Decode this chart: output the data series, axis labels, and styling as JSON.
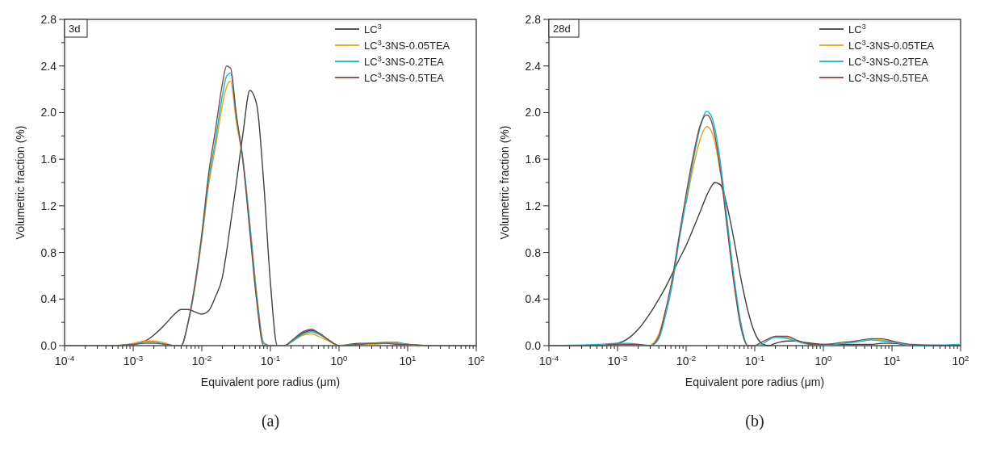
{
  "chart_data": [
    {
      "type": "line",
      "log": "x",
      "xlabel": "Equivalent pore radius (μm)",
      "ylabel": "Volumetric fraction (%)",
      "legend": "top right",
      "annotations": [
        "3d",
        "(a)"
      ],
      "xlim": [
        0.0001,
        100
      ],
      "ylim": [
        0,
        2.8
      ],
      "xticks": [
        {
          "value": 0.0001,
          "label": "10$^{-4}$"
        },
        {
          "value": 0.0002,
          "label": null
        },
        {
          "value": 0.0003,
          "label": null
        },
        {
          "value": 0.0004,
          "label": null
        },
        {
          "value": 0.0005,
          "label": null
        },
        {
          "value": 0.0006,
          "label": null
        },
        {
          "value": 0.0007,
          "label": null
        },
        {
          "value": 0.0008,
          "label": null
        },
        {
          "value": 0.0009,
          "label": null
        },
        {
          "value": 0.001,
          "label": "10$^{-3}$"
        },
        {
          "value": 0.002,
          "label": null
        },
        {
          "value": 0.003,
          "label": null
        },
        {
          "value": 0.004,
          "label": null
        },
        {
          "value": 0.005,
          "label": null
        },
        {
          "value": 0.006,
          "label": null
        },
        {
          "value": 0.007,
          "label": null
        },
        {
          "value": 0.008,
          "label": null
        },
        {
          "value": 0.009,
          "label": null
        },
        {
          "value": 0.01,
          "label": "10$^{-2}$"
        },
        {
          "value": 0.02,
          "label": null
        },
        {
          "value": 0.03,
          "label": null
        },
        {
          "value": 0.04,
          "label": null
        },
        {
          "value": 0.05,
          "label": null
        },
        {
          "value": 0.06,
          "label": null
        },
        {
          "value": 0.07,
          "label": null
        },
        {
          "value": 0.08,
          "label": null
        },
        {
          "value": 0.09,
          "label": null
        },
        {
          "value": 0.1,
          "label": "10$^{-1}$"
        },
        {
          "value": 0.2,
          "label": null
        },
        {
          "value": 0.3,
          "label": null
        },
        {
          "value": 0.4,
          "label": null
        },
        {
          "value": 0.5,
          "label": null
        },
        {
          "value": 0.6,
          "label": null
        },
        {
          "value": 0.7,
          "label": null
        },
        {
          "value": 0.8,
          "label": null
        },
        {
          "value": 0.9,
          "label": null
        },
        {
          "value": 1,
          "label": "10$^{0}$"
        },
        {
          "value": 2,
          "label": null
        },
        {
          "value": 3,
          "label": null
        },
        {
          "value": 4,
          "label": null
        },
        {
          "value": 5,
          "label": null
        },
        {
          "value": 6,
          "label": null
        },
        {
          "value": 7,
          "label": null
        },
        {
          "value": 8,
          "label": null
        },
        {
          "value": 9,
          "label": null
        },
        {
          "value": 10,
          "label": "10$^{1}$"
        },
        {
          "value": 20,
          "label": null
        },
        {
          "value": 30,
          "label": null
        },
        {
          "value": 40,
          "label": null
        },
        {
          "value": 50,
          "label": null
        },
        {
          "value": 60,
          "label": null
        },
        {
          "value": 70,
          "label": null
        },
        {
          "value": 80,
          "label": null
        },
        {
          "value": 90,
          "label": null
        },
        {
          "value": 100,
          "label": "10$^{2}$"
        }
      ],
      "yticks": [
        {
          "value": 0,
          "label": "0.0"
        },
        {
          "value": 0.2,
          "label": null
        },
        {
          "value": 0.4,
          "label": "0.4"
        },
        {
          "value": 0.6,
          "label": null
        },
        {
          "value": 0.8,
          "label": "0.8"
        },
        {
          "value": 1,
          "label": null
        },
        {
          "value": 1.2,
          "label": "1.2"
        },
        {
          "value": 1.4,
          "label": null
        },
        {
          "value": 1.6,
          "label": "1.6"
        },
        {
          "value": 1.8,
          "label": null
        },
        {
          "value": 2,
          "label": "2.0"
        },
        {
          "value": 2.2,
          "label": null
        },
        {
          "value": 2.4,
          "label": "2.4"
        },
        {
          "value": 2.6,
          "label": null
        },
        {
          "value": 2.8,
          "label": "2.8"
        }
      ],
      "x": [
        0.0001,
        0.0005,
        0.001,
        0.0015,
        0.002,
        0.003,
        0.004,
        0.005,
        0.0063,
        0.0079,
        0.01,
        0.0126,
        0.0158,
        0.02,
        0.0229,
        0.0263,
        0.0316,
        0.0398,
        0.0501,
        0.0631,
        0.0794,
        0.1,
        0.126,
        0.16,
        0.2,
        0.3,
        0.4,
        0.5,
        0.7,
        1,
        2,
        3,
        5,
        7,
        10,
        20,
        100
      ],
      "series": [
        {
          "name": "LC$^{3}$",
          "color": "#404040",
          "values": [
            0,
            0,
            0.01,
            0.04,
            0.09,
            0.19,
            0.27,
            0.31,
            0.31,
            0.29,
            0.27,
            0.3,
            0.42,
            0.59,
            0.8,
            1.05,
            1.38,
            1.82,
            2.19,
            2.07,
            1.42,
            0.54,
            0,
            0,
            0.03,
            0.11,
            0.13,
            0.11,
            0.05,
            0,
            0.02,
            0.02,
            0.02,
            0.02,
            0.01,
            0,
            0
          ]
        },
        {
          "name": "LC$^{3}$-3NS-0.05TEA",
          "color": "#e6a41c",
          "values": [
            0,
            0,
            0.02,
            0.04,
            0.04,
            0.02,
            0,
            0,
            0.19,
            0.49,
            0.91,
            1.38,
            1.7,
            2.07,
            2.22,
            2.27,
            1.93,
            1.59,
            1.05,
            0.45,
            0.03,
            0,
            0,
            0,
            0.03,
            0.09,
            0.1,
            0.08,
            0.04,
            0,
            0.01,
            0.01,
            0.02,
            0.02,
            0.01,
            0,
            0
          ]
        },
        {
          "name": "LC$^{3}$-3NS-0.2TEA",
          "color": "#1ab3cc",
          "values": [
            0,
            0,
            0.01,
            0.03,
            0.03,
            0.01,
            0,
            0,
            0.19,
            0.5,
            0.93,
            1.42,
            1.76,
            2.15,
            2.31,
            2.34,
            1.98,
            1.6,
            1.04,
            0.43,
            0.02,
            0,
            0,
            0,
            0.03,
            0.1,
            0.12,
            0.1,
            0.05,
            0,
            0.01,
            0.02,
            0.03,
            0.03,
            0.01,
            0,
            0
          ]
        },
        {
          "name": "LC$^{3}$-3NS-0.5TEA",
          "color": "#7b4d4a",
          "values": [
            0,
            0,
            0.01,
            0.02,
            0.02,
            0.01,
            0,
            0,
            0.2,
            0.52,
            0.96,
            1.48,
            1.85,
            2.25,
            2.4,
            2.38,
            2,
            1.58,
            0.98,
            0.38,
            0,
            0,
            0,
            0,
            0.04,
            0.12,
            0.14,
            0.11,
            0.05,
            0,
            0.01,
            0.02,
            0.02,
            0.01,
            0.01,
            0,
            0
          ]
        }
      ]
    },
    {
      "type": "line",
      "log": "x",
      "xlabel": "Equivalent pore radius (μm)",
      "ylabel": "Volumetric fraction (%)",
      "legend": "top right",
      "annotations": [
        "28d",
        "(b)"
      ],
      "xlim": [
        0.0001,
        100
      ],
      "ylim": [
        0,
        2.8
      ],
      "xticks": [
        {
          "value": 0.0001,
          "label": "10$^{-4}$"
        },
        {
          "value": 0.0002,
          "label": null
        },
        {
          "value": 0.0003,
          "label": null
        },
        {
          "value": 0.0004,
          "label": null
        },
        {
          "value": 0.0005,
          "label": null
        },
        {
          "value": 0.0006,
          "label": null
        },
        {
          "value": 0.0007,
          "label": null
        },
        {
          "value": 0.0008,
          "label": null
        },
        {
          "value": 0.0009,
          "label": null
        },
        {
          "value": 0.001,
          "label": "10$^{-3}$"
        },
        {
          "value": 0.002,
          "label": null
        },
        {
          "value": 0.003,
          "label": null
        },
        {
          "value": 0.004,
          "label": null
        },
        {
          "value": 0.005,
          "label": null
        },
        {
          "value": 0.006,
          "label": null
        },
        {
          "value": 0.007,
          "label": null
        },
        {
          "value": 0.008,
          "label": null
        },
        {
          "value": 0.009,
          "label": null
        },
        {
          "value": 0.01,
          "label": "10$^{-2}$"
        },
        {
          "value": 0.02,
          "label": null
        },
        {
          "value": 0.03,
          "label": null
        },
        {
          "value": 0.04,
          "label": null
        },
        {
          "value": 0.05,
          "label": null
        },
        {
          "value": 0.06,
          "label": null
        },
        {
          "value": 0.07,
          "label": null
        },
        {
          "value": 0.08,
          "label": null
        },
        {
          "value": 0.09,
          "label": null
        },
        {
          "value": 0.1,
          "label": "10$^{-1}$"
        },
        {
          "value": 0.2,
          "label": null
        },
        {
          "value": 0.3,
          "label": null
        },
        {
          "value": 0.4,
          "label": null
        },
        {
          "value": 0.5,
          "label": null
        },
        {
          "value": 0.6,
          "label": null
        },
        {
          "value": 0.7,
          "label": null
        },
        {
          "value": 0.8,
          "label": null
        },
        {
          "value": 0.9,
          "label": null
        },
        {
          "value": 1,
          "label": "10$^{0}$"
        },
        {
          "value": 2,
          "label": null
        },
        {
          "value": 3,
          "label": null
        },
        {
          "value": 4,
          "label": null
        },
        {
          "value": 5,
          "label": null
        },
        {
          "value": 6,
          "label": null
        },
        {
          "value": 7,
          "label": null
        },
        {
          "value": 8,
          "label": null
        },
        {
          "value": 9,
          "label": null
        },
        {
          "value": 10,
          "label": "10$^{1}$"
        },
        {
          "value": 20,
          "label": null
        },
        {
          "value": 30,
          "label": null
        },
        {
          "value": 40,
          "label": null
        },
        {
          "value": 50,
          "label": null
        },
        {
          "value": 60,
          "label": null
        },
        {
          "value": 70,
          "label": null
        },
        {
          "value": 80,
          "label": null
        },
        {
          "value": 90,
          "label": null
        },
        {
          "value": 100,
          "label": "10$^{2}$"
        }
      ],
      "yticks": [
        {
          "value": 0,
          "label": "0.0"
        },
        {
          "value": 0.2,
          "label": null
        },
        {
          "value": 0.4,
          "label": "0.4"
        },
        {
          "value": 0.6,
          "label": null
        },
        {
          "value": 0.8,
          "label": "0.8"
        },
        {
          "value": 1,
          "label": null
        },
        {
          "value": 1.2,
          "label": "1.2"
        },
        {
          "value": 1.4,
          "label": null
        },
        {
          "value": 1.6,
          "label": "1.6"
        },
        {
          "value": 1.8,
          "label": null
        },
        {
          "value": 2,
          "label": "2.0"
        },
        {
          "value": 2.2,
          "label": null
        },
        {
          "value": 2.4,
          "label": "2.4"
        },
        {
          "value": 2.6,
          "label": null
        },
        {
          "value": 2.8,
          "label": "2.8"
        }
      ],
      "x": [
        0.0001,
        0.0005,
        0.001,
        0.0015,
        0.002,
        0.003,
        0.004,
        0.005,
        0.0063,
        0.0079,
        0.01,
        0.0126,
        0.0158,
        0.02,
        0.0229,
        0.0263,
        0.0316,
        0.0398,
        0.0501,
        0.0631,
        0.0794,
        0.1,
        0.126,
        0.16,
        0.2,
        0.3,
        0.4,
        0.5,
        0.7,
        1,
        2,
        3,
        5,
        7,
        10,
        20,
        100
      ],
      "series": [
        {
          "name": "LC$^{3}$",
          "color": "#404040",
          "values": [
            0,
            0,
            0.02,
            0.07,
            0.14,
            0.28,
            0.4,
            0.5,
            0.62,
            0.74,
            0.86,
            1,
            1.14,
            1.29,
            1.36,
            1.4,
            1.38,
            1.19,
            0.9,
            0.57,
            0.3,
            0.11,
            0.02,
            0,
            0.02,
            0.04,
            0.04,
            0.03,
            0.02,
            0.01,
            0.01,
            0.01,
            0.01,
            0.02,
            0.02,
            0,
            0
          ]
        },
        {
          "name": "LC$^{3}$-3NS-0.05TEA",
          "color": "#e6a41c",
          "values": [
            null,
            null,
            null,
            null,
            null,
            0,
            0.1,
            0.3,
            null,
            null,
            1.22,
            1.52,
            1.76,
            1.88,
            1.85,
            1.74,
            1.48,
            null,
            null,
            null,
            null,
            null,
            null,
            null,
            0.08,
            0.07,
            0.05,
            null,
            null,
            null,
            null,
            null,
            0.06,
            0.05,
            0.03,
            null,
            null
          ]
        },
        {
          "name": "LC$^{3}$-3NS-0.2TEA",
          "color": "#1ab3cc",
          "values": [
            0,
            0.01,
            0.02,
            0.02,
            0.01,
            0,
            0.06,
            0.26,
            0.53,
            0.9,
            1.24,
            1.58,
            1.86,
            2.01,
            1.98,
            1.86,
            1.57,
            1.07,
            0.58,
            0.19,
            0,
            0,
            0.01,
            0.05,
            0.07,
            0.06,
            0.04,
            0.02,
            0.01,
            0,
            0.02,
            0.03,
            0.05,
            0.04,
            0.03,
            0,
            0.01
          ]
        },
        {
          "name": "LC$^{3}$-3NS-0.5TEA",
          "color": "#7b4d4a",
          "values": [
            0,
            0,
            0.01,
            0.01,
            0.01,
            0,
            0.08,
            0.3,
            0.58,
            0.94,
            1.3,
            1.62,
            1.88,
            1.98,
            1.94,
            1.8,
            1.5,
            1,
            0.52,
            0.15,
            0,
            0,
            0.03,
            0.06,
            0.08,
            0.08,
            0.05,
            0.03,
            0.01,
            0.01,
            0.03,
            0.04,
            0.06,
            0.06,
            0.04,
            0.01,
            0
          ]
        }
      ]
    }
  ]
}
